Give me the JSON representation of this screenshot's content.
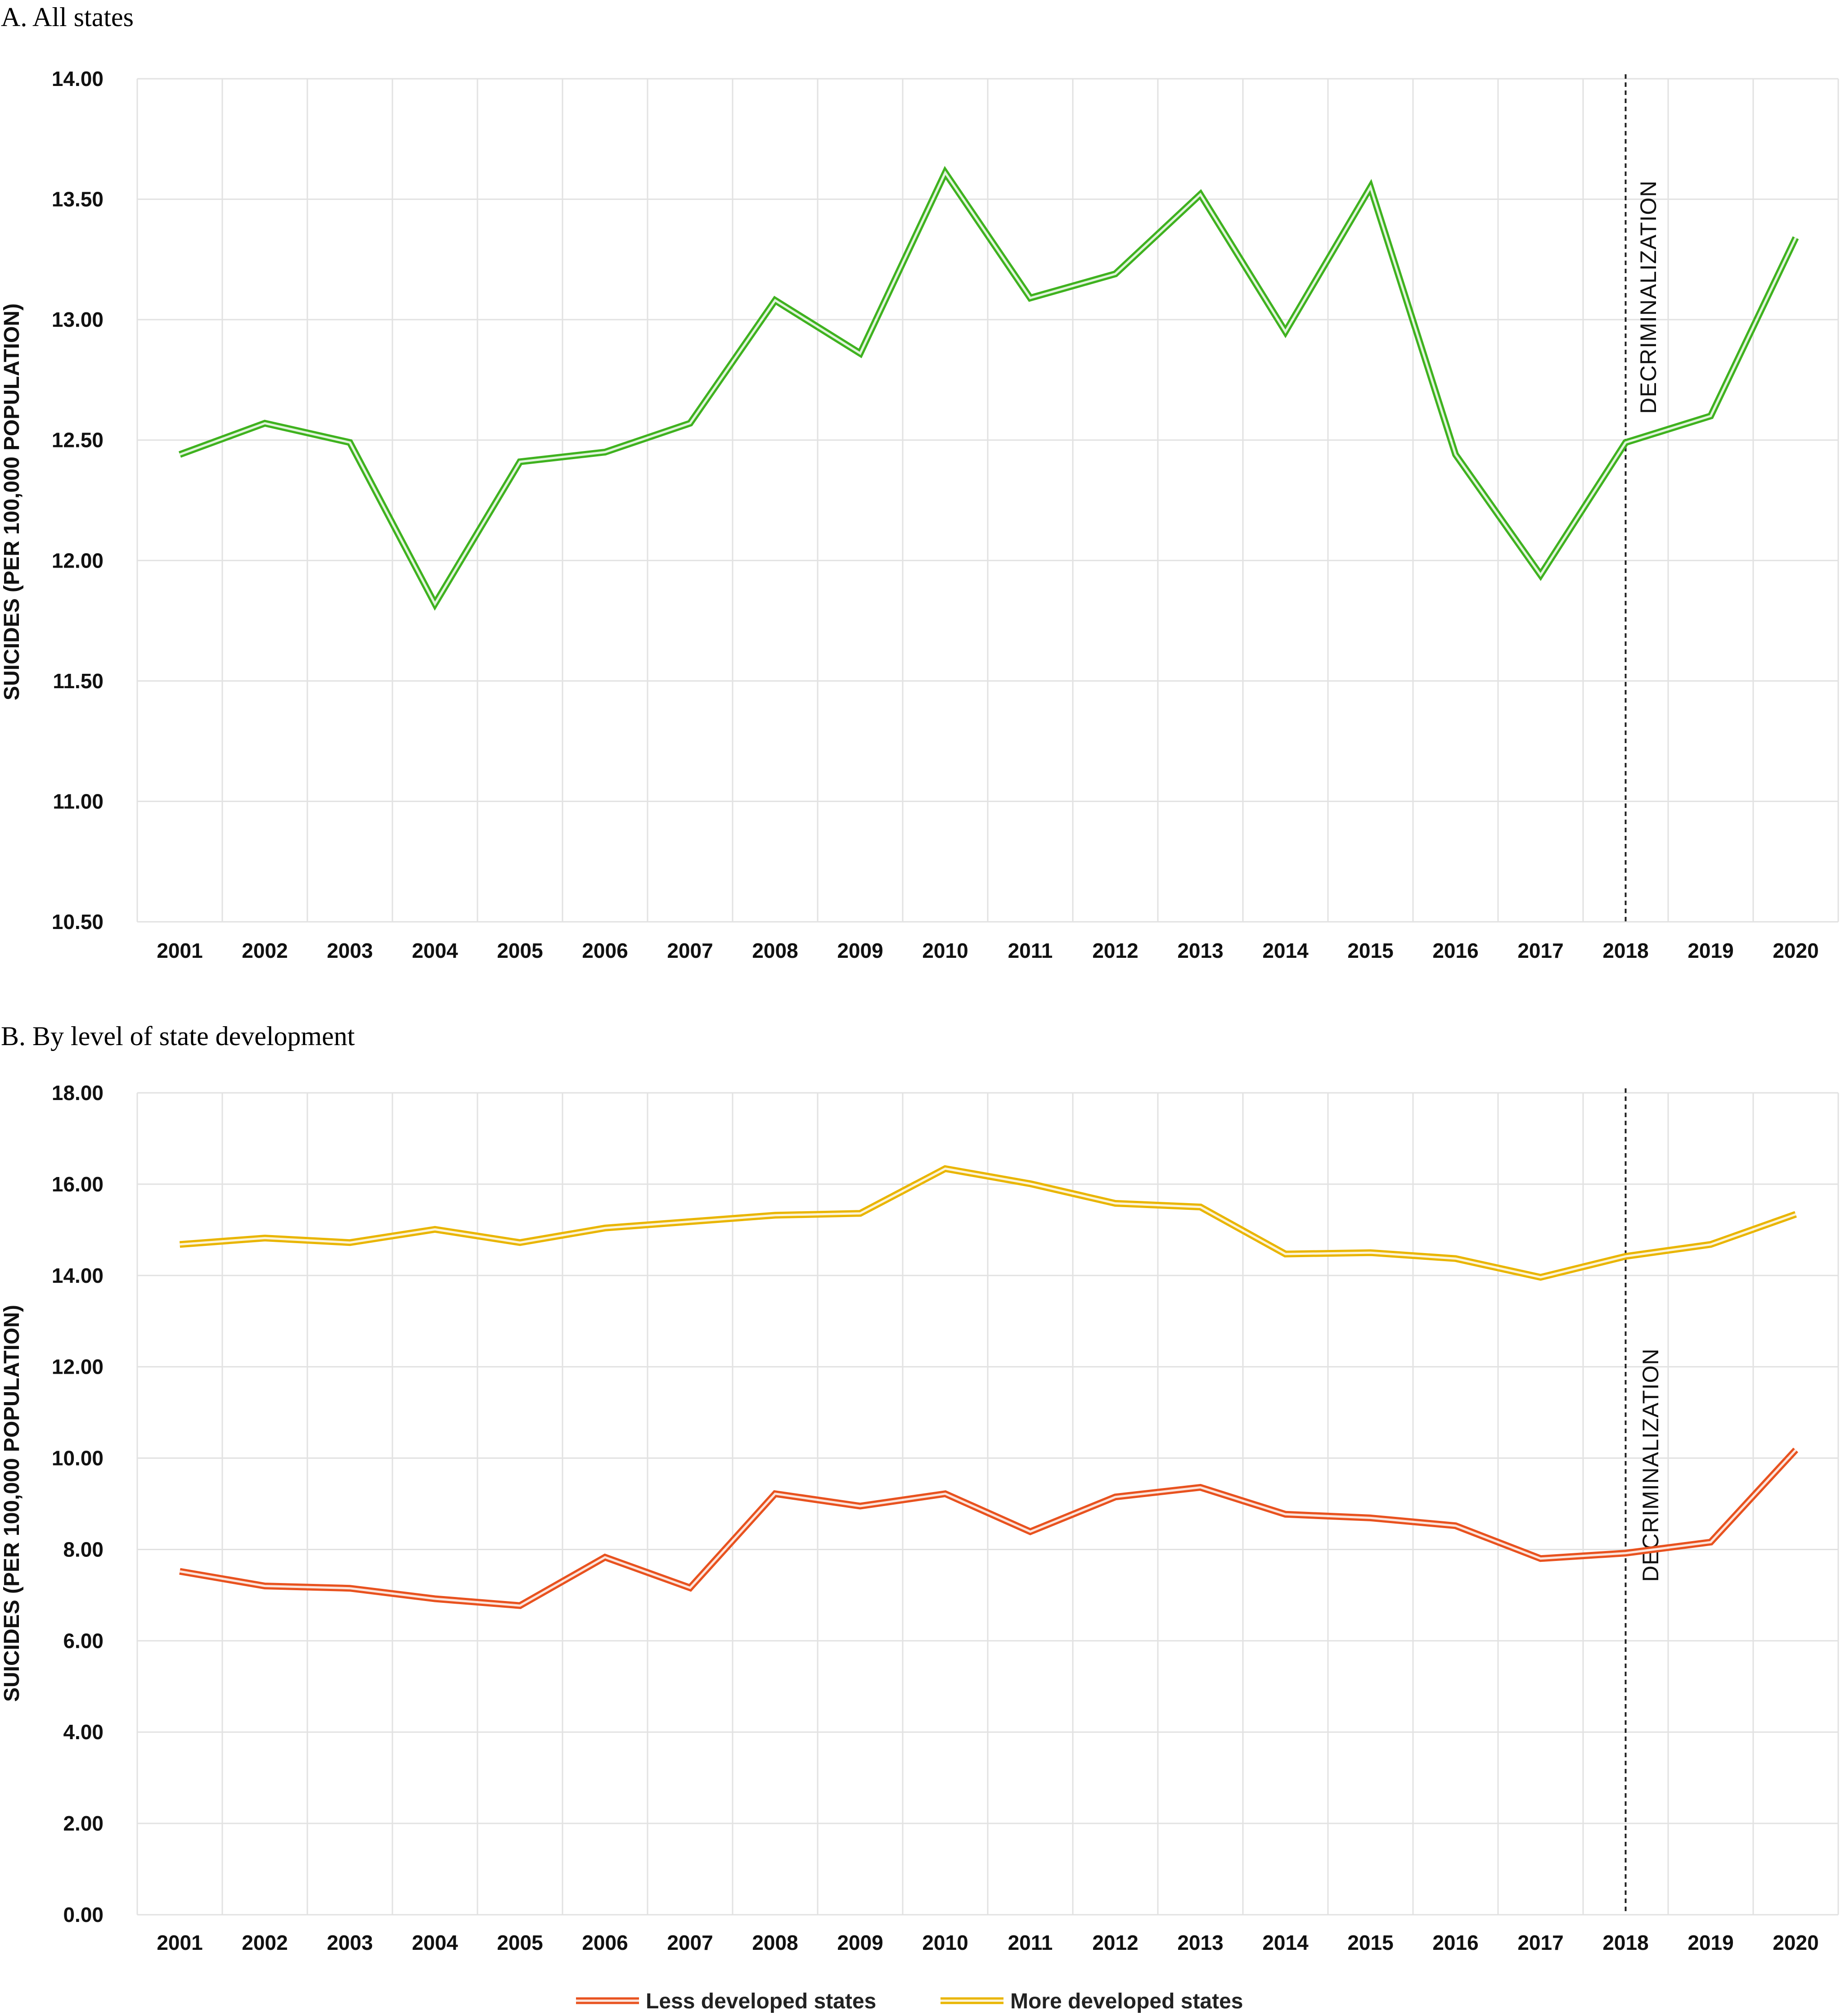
{
  "chart_data": [
    {
      "type": "line",
      "panel_title": "A. All states",
      "ylabel": "SUICIDES (PER 100,000 POPULATION)",
      "xlabel": "",
      "categories": [
        "2001",
        "2002",
        "2003",
        "2004",
        "2005",
        "2006",
        "2007",
        "2008",
        "2009",
        "2010",
        "2011",
        "2012",
        "2013",
        "2014",
        "2015",
        "2016",
        "2017",
        "2018",
        "2019",
        "2020"
      ],
      "ylim": [
        10.5,
        14.0
      ],
      "yticks": [
        "10.50",
        "11.00",
        "11.50",
        "12.00",
        "12.50",
        "13.00",
        "13.50",
        "14.00"
      ],
      "grid": true,
      "series": [
        {
          "color": "#3fb21f",
          "values": [
            12.44,
            12.57,
            12.49,
            11.82,
            12.41,
            12.45,
            12.57,
            13.08,
            12.86,
            13.61,
            13.09,
            13.19,
            13.52,
            12.95,
            13.55,
            12.44,
            11.94,
            12.49,
            12.6,
            13.34
          ]
        }
      ],
      "annotation": {
        "x": "2018",
        "label": "DECRIMINALIZATION"
      }
    },
    {
      "type": "line",
      "panel_title": "B. By level of state development",
      "ylabel": "SUICIDES (PER 100,000 POPULATION)",
      "xlabel": "",
      "categories": [
        "2001",
        "2002",
        "2003",
        "2004",
        "2005",
        "2006",
        "2007",
        "2008",
        "2009",
        "2010",
        "2011",
        "2012",
        "2013",
        "2014",
        "2015",
        "2016",
        "2017",
        "2018",
        "2019",
        "2020"
      ],
      "ylim": [
        0,
        18
      ],
      "yticks": [
        "0.00",
        "2.00",
        "4.00",
        "6.00",
        "8.00",
        "10.00",
        "12.00",
        "14.00",
        "16.00",
        "18.00"
      ],
      "grid": true,
      "legend_position": "bottom",
      "series": [
        {
          "name": "Less developed states",
          "color": "#e8521f",
          "values": [
            7.52,
            7.2,
            7.15,
            6.92,
            6.77,
            7.83,
            7.16,
            9.22,
            8.95,
            9.22,
            8.39,
            9.15,
            9.36,
            8.77,
            8.69,
            8.52,
            7.8,
            7.92,
            8.16,
            10.18
          ]
        },
        {
          "name": "More developed states",
          "color": "#e9b500",
          "values": [
            14.68,
            14.82,
            14.72,
            15.01,
            14.72,
            15.04,
            15.18,
            15.32,
            15.36,
            16.34,
            16.01,
            15.58,
            15.5,
            14.47,
            14.5,
            14.37,
            13.96,
            14.42,
            14.68,
            15.34
          ]
        }
      ],
      "annotation": {
        "x": "2018",
        "label": "DECRIMINALIZATION"
      }
    }
  ]
}
